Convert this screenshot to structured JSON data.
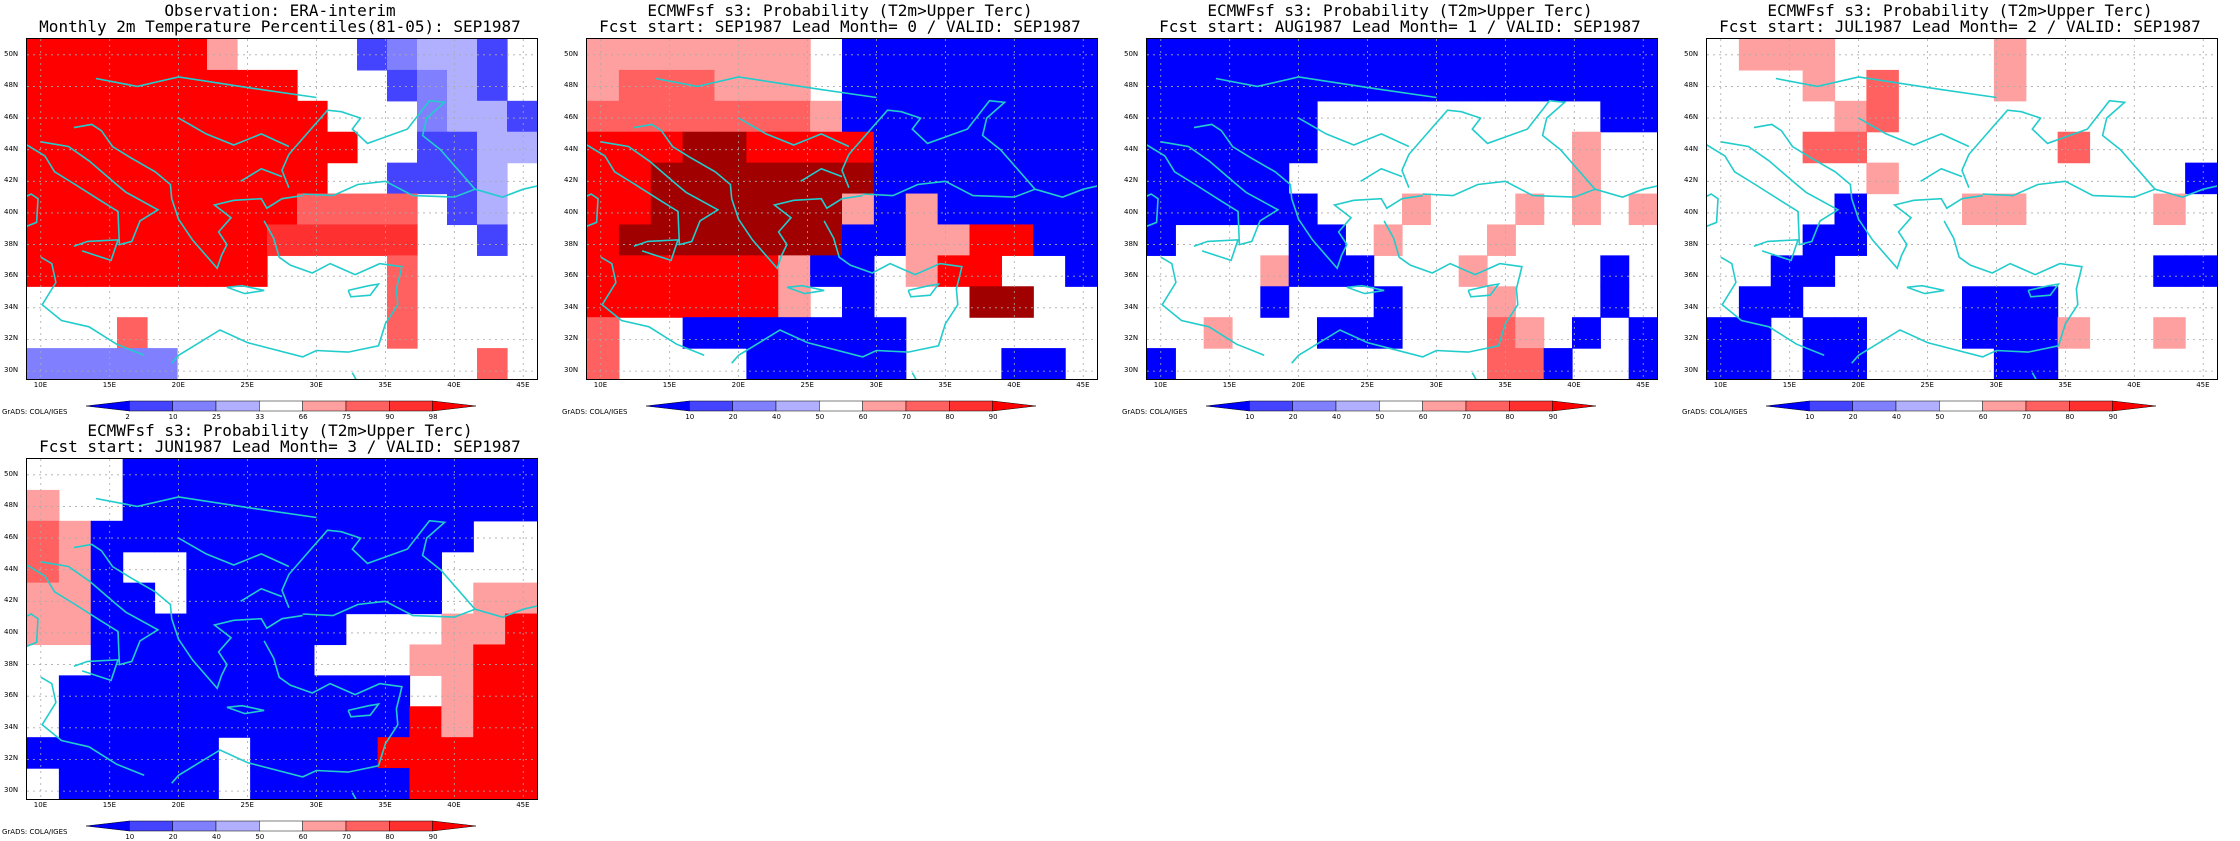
{
  "credit_text": "GrADS: COLA/IGES",
  "lat_ticks": [
    "50N",
    "48N",
    "46N",
    "44N",
    "42N",
    "40N",
    "38N",
    "36N",
    "34N",
    "32N",
    "30N"
  ],
  "lon_ticks": [
    "10E",
    "15E",
    "20E",
    "25E",
    "30E",
    "35E",
    "40E",
    "45E"
  ],
  "colors": {
    "dark_blue": "#0000ff",
    "mid_blue": "#4444ff",
    "light_blue": "#8080ff",
    "pale_blue": "#b0b0ff",
    "white": "#ffffff",
    "pale_red": "#ffa0a0",
    "light_red": "#ff6060",
    "mid_red": "#ff3030",
    "red": "#ff0000",
    "dark_red": "#dd0000",
    "deep_red": "#a00000",
    "coast": "#22cccc"
  },
  "panels": [
    {
      "id": "obs",
      "title_line1": "Observation: ERA-interim",
      "title_line2": "Monthly 2m Temperature Percentiles(81-05): SEP1987",
      "colorbar_labels": [
        "2",
        "10",
        "25",
        "33",
        "66",
        "75",
        "90",
        "98"
      ],
      "grid": [
        "RRRRRRpWWWWblLLb",
        "RRRRRRRRRWWWblLb",
        "RRRRRRRRRRWWWlLLb",
        "RRRRRRRRRRRWWbbLL",
        "RRRRRRRRRRWWbbbL",
        "RRRRRRRRRmmmmWbL",
        "RRRRRRRRMMMMMWWb",
        "RRRRRRRRWWWWmWWW",
        "WWWWWWWWWWWWmWWW",
        "WWWmWWWWWWWWmWWW",
        "lllllWWWWWWWWWWm"
      ]
    },
    {
      "id": "lead0",
      "title_line1": "ECMWFsf s3: Probability (T2m>Upper Terc)",
      "title_line2": "Fcst start: SEP1987  Lead Month= 0 / VALID: SEP1987",
      "colorbar_labels": [
        "10",
        "20",
        "40",
        "50",
        "60",
        "70",
        "80",
        "90"
      ],
      "grid": [
        "pppppppWBBBBBBBB",
        "pmmmpppWBBBBBBBB",
        "mmmmmmmpBBBBBBBB",
        "RRRDDRRRRBBBBBBB",
        "RRDDDDDDDBBBBBBB",
        "RRDDDDDDpBpBBBBB",
        "RDDDDDDDBBppRRBB",
        "RRRRRRpBBWpRRWWB",
        "RRRRRRpWBWWWDDWW",
        "mWWBBBBBBBWWWWWW",
        "mWWWWBBBBBWWWBBW"
      ]
    },
    {
      "id": "lead1",
      "title_line1": "ECMWFsf s3: Probability (T2m>Upper Terc)",
      "title_line2": "Fcst start: AUG1987  Lead Month= 1 / VALID: SEP1987",
      "colorbar_labels": [
        "10",
        "20",
        "40",
        "50",
        "60",
        "70",
        "80",
        "90"
      ],
      "grid": [
        "BBBBBBBBBBBBBBBBBB",
        "BBBBBBBBBBBBBBBBBB",
        "BBBBBBWWWWWWWWWWBB",
        "BBBBBBWWWWWWWWWpWW",
        "BBBBBWWWWWWWWWWpWW",
        "BBBBBBWWWpWWWpWpWp",
        "BWWWWBBWpWWWpWWWWW",
        "WWWWpBBBWWWpWWWWBW",
        "WWWWBWWWBWWWpWWWBW",
        "WWpWWWBBBWWWmpWBWB",
        "BWWWWWWWWWWWmmBWWB"
      ]
    },
    {
      "id": "lead2",
      "title_line1": "ECMWFsf s3: Probability (T2m>Upper Terc)",
      "title_line2": "Fcst start: JUL1987  Lead Month= 2 / VALID: SEP1987",
      "colorbar_labels": [
        "10",
        "20",
        "40",
        "50",
        "60",
        "70",
        "80",
        "90"
      ],
      "grid": [
        "WpppWWWWWpWWWWWW",
        "WWWpWmWWWpWWWWWW",
        "WWWWpmWWWWWWWWWW",
        "WWWmmWWWWWWmWWWW",
        "WWWWWpWWWWWWWWWB",
        "WWWWBWWWppWWWWpW",
        "WWWBBWWWWWWWWWWW",
        "WWBBWWWWWWWWWWBB",
        "WBBWWWWWBBBWWWWW",
        "BBWBBWWWBBBpWWpW",
        "BBWBBWWWWBBWWWWW"
      ]
    },
    {
      "id": "lead3",
      "title_line1": "ECMWFsf s3: Probability (T2m>Upper Terc)",
      "title_line2": "Fcst start: JUN1987  Lead Month= 3 / VALID: SEP1987",
      "colorbar_labels": [
        "10",
        "20",
        "40",
        "50",
        "60",
        "70",
        "80",
        "90"
      ],
      "grid": [
        "WWWBBBBBBBBBBBBB",
        "pWWBBBBBBBBBBBBB",
        "mpBBBBBBBBBBBBWW",
        "mpBWWBBBBBBBBWWW",
        "ppBBWBBBBBBBBWpp",
        "ppBBBBBBBBWWWppR",
        "WWBBBBBBBWWWppRR",
        "WBBBBBBBBBBBWpRR",
        "WBBBBBBBBBBBRpRR",
        "BBBBBBWBBBBRRRRR",
        "WBBBBBWBBBBBRRRR"
      ]
    }
  ]
}
